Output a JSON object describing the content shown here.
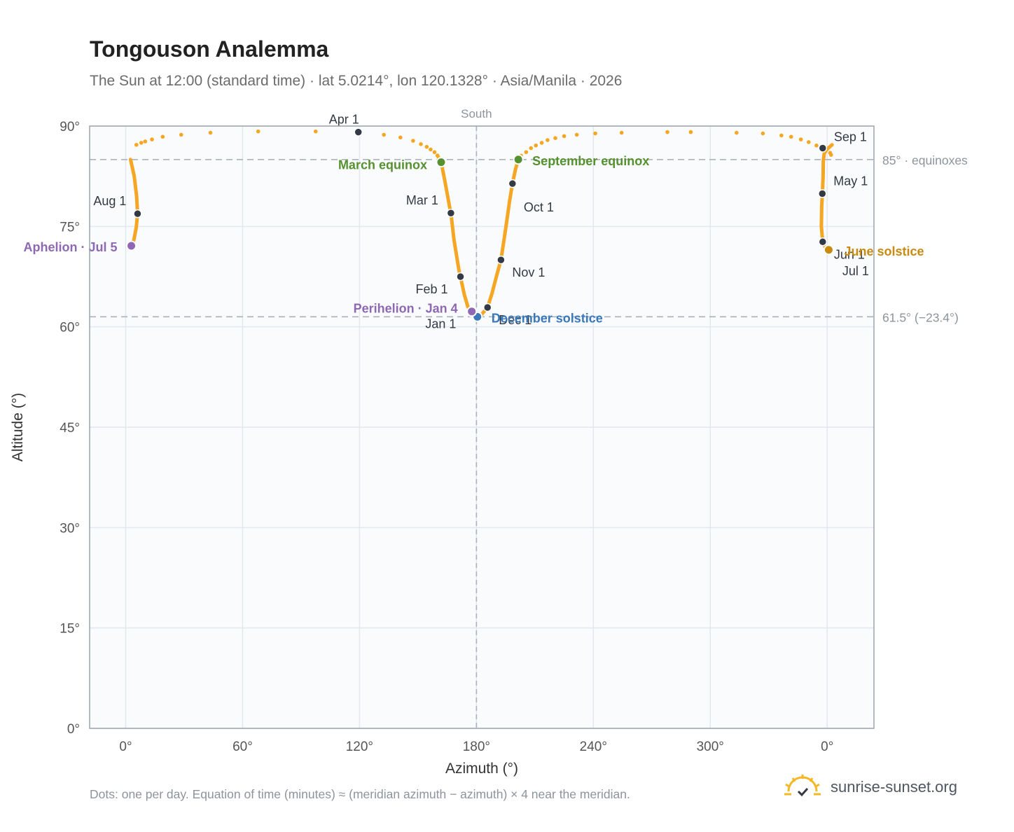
{
  "header": {
    "title": "Tongouson Analemma",
    "subtitle": "The Sun at 12:00 (standard time) · lat 5.0214°, lon 120.1328° · Asia/Manila · 2026"
  },
  "footer": {
    "note": "Dots: one per day. Equation of time (minutes) ≈ (meridian azimuth − azimuth) × 4 near the meridian.",
    "brand": "sunrise-sunset.org"
  },
  "colors": {
    "path": "#f5a623",
    "month_dot": "#333a44",
    "equinox": "#55912f",
    "june_solstice": "#c98a10",
    "december_solstice": "#3a78b9",
    "apsis": "#8e68b3",
    "plot_bg": "#f9fbfd",
    "grid": "#e3e8ee",
    "reference_line": "#aab3bd"
  },
  "chart_data": {
    "type": "scatter",
    "xlabel": "Azimuth (°)",
    "ylabel": "Altitude (°)",
    "x_ticks": [
      "0°",
      "60°",
      "120°",
      "180°",
      "240°",
      "300°",
      "0°"
    ],
    "y_ticks": [
      "0°",
      "15°",
      "30°",
      "45°",
      "60°",
      "75°",
      "90°"
    ],
    "xlim": [
      -18.5,
      384
    ],
    "ylim": [
      0,
      90
    ],
    "grid": true,
    "south_label": "South",
    "south_azimuth": 180,
    "reference_lines": [
      {
        "altitude": 85,
        "label": "85° · equinoxes"
      },
      {
        "altitude": 61.5,
        "label": "61.5° (−23.4°)"
      }
    ],
    "series_description": "Dots: one per day",
    "month_markers": [
      {
        "label": "Jan 1",
        "azimuth": 177.5,
        "altitude": 62.1
      },
      {
        "label": "Feb 1",
        "azimuth": 171.8,
        "altitude": 67.5
      },
      {
        "label": "Mar 1",
        "azimuth": 166.9,
        "altitude": 77.0
      },
      {
        "label": "Apr 1",
        "azimuth": 119.4,
        "altitude": 89.1
      },
      {
        "label": "May 1",
        "azimuth": 357.5,
        "altitude": 79.9
      },
      {
        "label": "Jun 1",
        "azimuth": 357.7,
        "altitude": 72.7
      },
      {
        "label": "Jul 1",
        "azimuth": 360.6,
        "altitude": 71.5
      },
      {
        "label": "Aug 1",
        "azimuth": 6.1,
        "altitude": 76.9
      },
      {
        "label": "Sep 1",
        "azimuth": 357.7,
        "altitude": 86.7
      },
      {
        "label": "Oct 1",
        "azimuth": 198.5,
        "altitude": 81.4
      },
      {
        "label": "Nov 1",
        "azimuth": 192.6,
        "altitude": 70.0
      },
      {
        "label": "Dec 1",
        "azimuth": 185.7,
        "altitude": 62.9
      }
    ],
    "special_markers": [
      {
        "label": "March equinox",
        "azimuth": 161.9,
        "altitude": 84.6,
        "kind": "equinox"
      },
      {
        "label": "September equinox",
        "azimuth": 201.5,
        "altitude": 85.0,
        "kind": "equinox"
      },
      {
        "label": "June solstice",
        "azimuth": 360.8,
        "altitude": 71.5,
        "kind": "june_solstice"
      },
      {
        "label": "December solstice",
        "azimuth": 180.5,
        "altitude": 61.5,
        "kind": "december_solstice"
      },
      {
        "label": "Perihelion · Jan 4",
        "azimuth": 177.6,
        "altitude": 62.3,
        "kind": "apsis"
      },
      {
        "label": "Aphelion · Jul 5",
        "azimuth": 2.9,
        "altitude": 72.1,
        "kind": "apsis"
      }
    ],
    "sparse_dots": [
      {
        "azimuth": 5.5,
        "altitude": 87.2
      },
      {
        "azimuth": 8.0,
        "altitude": 87.5
      },
      {
        "azimuth": 10.0,
        "altitude": 87.7
      },
      {
        "azimuth": 13.5,
        "altitude": 88.0
      },
      {
        "azimuth": 19.0,
        "altitude": 88.4
      },
      {
        "azimuth": 28.5,
        "altitude": 88.7
      },
      {
        "azimuth": 43.5,
        "altitude": 89.0
      },
      {
        "azimuth": 68.0,
        "altitude": 89.2
      },
      {
        "azimuth": 97.5,
        "altitude": 89.2
      },
      {
        "azimuth": 132.5,
        "altitude": 88.7
      },
      {
        "azimuth": 141.0,
        "altitude": 88.3
      },
      {
        "azimuth": 147.5,
        "altitude": 87.8
      },
      {
        "azimuth": 151.5,
        "altitude": 87.3
      },
      {
        "azimuth": 154.5,
        "altitude": 86.9
      },
      {
        "azimuth": 156.5,
        "altitude": 86.5
      },
      {
        "azimuth": 158.5,
        "altitude": 86.1
      },
      {
        "azimuth": 160.0,
        "altitude": 85.6
      },
      {
        "azimuth": 205.5,
        "altitude": 86.1
      },
      {
        "azimuth": 208.0,
        "altitude": 86.7
      },
      {
        "azimuth": 210.5,
        "altitude": 87.1
      },
      {
        "azimuth": 213.5,
        "altitude": 87.5
      },
      {
        "azimuth": 216.5,
        "altitude": 87.9
      },
      {
        "azimuth": 220.5,
        "altitude": 88.2
      },
      {
        "azimuth": 225.0,
        "altitude": 88.5
      },
      {
        "azimuth": 231.5,
        "altitude": 88.7
      },
      {
        "azimuth": 241.0,
        "altitude": 88.9
      },
      {
        "azimuth": 254.5,
        "altitude": 89.0
      },
      {
        "azimuth": 278.0,
        "altitude": 89.1
      },
      {
        "azimuth": 290.0,
        "altitude": 89.1
      },
      {
        "azimuth": 313.5,
        "altitude": 89.0
      },
      {
        "azimuth": 327.0,
        "altitude": 88.9
      },
      {
        "azimuth": 336.5,
        "altitude": 88.6
      },
      {
        "azimuth": 341.5,
        "altitude": 88.4
      },
      {
        "azimuth": 346.5,
        "altitude": 88.0
      },
      {
        "azimuth": 350.5,
        "altitude": 87.6
      },
      {
        "azimuth": 354.5,
        "altitude": 87.1
      },
      {
        "azimuth": 357.5,
        "altitude": 86.5
      },
      {
        "azimuth": 361.5,
        "altitude": 86.0
      },
      {
        "azimuth": 362.0,
        "altitude": 85.7
      }
    ],
    "path_segments": [
      [
        {
          "azimuth": 160.0,
          "altitude": 85.6
        },
        {
          "azimuth": 161.9,
          "altitude": 84.6
        },
        {
          "azimuth": 164.0,
          "altitude": 81.5
        },
        {
          "azimuth": 166.2,
          "altitude": 78.0
        },
        {
          "azimuth": 166.9,
          "altitude": 77.0
        },
        {
          "azimuth": 168.5,
          "altitude": 73.0
        },
        {
          "azimuth": 171.0,
          "altitude": 68.5
        },
        {
          "azimuth": 171.8,
          "altitude": 67.5
        },
        {
          "azimuth": 173.8,
          "altitude": 64.8
        },
        {
          "azimuth": 175.6,
          "altitude": 63.0
        },
        {
          "azimuth": 177.5,
          "altitude": 62.1
        },
        {
          "azimuth": 179.0,
          "altitude": 61.6
        },
        {
          "azimuth": 180.5,
          "altitude": 61.5
        },
        {
          "azimuth": 182.5,
          "altitude": 61.8
        },
        {
          "azimuth": 184.5,
          "altitude": 62.5
        },
        {
          "azimuth": 185.7,
          "altitude": 62.9
        },
        {
          "azimuth": 188.0,
          "altitude": 65.0
        },
        {
          "azimuth": 190.5,
          "altitude": 67.8
        },
        {
          "azimuth": 192.6,
          "altitude": 70.0
        },
        {
          "azimuth": 195.2,
          "altitude": 75.0
        },
        {
          "azimuth": 197.0,
          "altitude": 78.8
        },
        {
          "azimuth": 198.5,
          "altitude": 81.4
        },
        {
          "azimuth": 200.0,
          "altitude": 83.5
        },
        {
          "azimuth": 201.5,
          "altitude": 85.0
        },
        {
          "azimuth": 203.0,
          "altitude": 85.6
        }
      ],
      [
        {
          "azimuth": 2.5,
          "altitude": 85.0
        },
        {
          "azimuth": 4.4,
          "altitude": 82.5
        },
        {
          "azimuth": 5.6,
          "altitude": 79.5
        },
        {
          "azimuth": 6.1,
          "altitude": 76.9
        },
        {
          "azimuth": 5.4,
          "altitude": 74.8
        },
        {
          "azimuth": 4.2,
          "altitude": 73.0
        },
        {
          "azimuth": 2.9,
          "altitude": 72.1
        }
      ],
      [
        {
          "azimuth": 360.8,
          "altitude": 71.5
        },
        {
          "azimuth": 360.6,
          "altitude": 71.5
        },
        {
          "azimuth": 359.0,
          "altitude": 71.9
        },
        {
          "azimuth": 357.7,
          "altitude": 72.7
        },
        {
          "azimuth": 357.0,
          "altitude": 75.0
        },
        {
          "azimuth": 357.2,
          "altitude": 78.0
        },
        {
          "azimuth": 357.5,
          "altitude": 79.9
        },
        {
          "azimuth": 357.9,
          "altitude": 82.5
        },
        {
          "azimuth": 358.0,
          "altitude": 84.8
        },
        {
          "azimuth": 358.5,
          "altitude": 85.9
        },
        {
          "azimuth": 359.8,
          "altitude": 86.5
        },
        {
          "azimuth": 362.5,
          "altitude": 87.2
        }
      ]
    ]
  }
}
